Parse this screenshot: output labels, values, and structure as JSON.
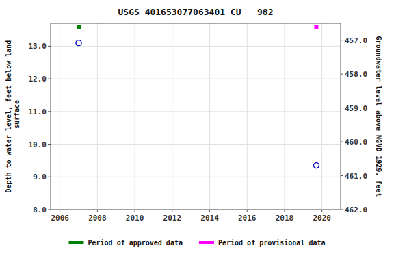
{
  "chart_data": {
    "type": "scatter",
    "title": "USGS 401653077063401 CU   982",
    "y_label": "Depth to water level, feet below land\n surface",
    "y2_label": "Groundwater level above NGVD 1929, feet",
    "x": [
      2007.0,
      2019.7
    ],
    "values": [
      13.1,
      9.35
    ],
    "color": "#0000cc",
    "marker": "open-circle",
    "series": [
      {
        "name": "Period of approved data",
        "color": "#008000",
        "marker": "square",
        "x": [
          2007.0
        ]
      },
      {
        "name": "Period of provisional data",
        "color": "#ff00ff",
        "marker": "square",
        "x": [
          2019.7
        ]
      }
    ],
    "xlim": [
      2005.5,
      2021.0
    ],
    "xticks": [
      2006,
      2008,
      2010,
      2012,
      2014,
      2016,
      2018,
      2020
    ],
    "ylim": [
      8.0,
      13.7
    ],
    "yticks": [
      {
        "value": 8,
        "label": "8.0"
      },
      {
        "value": 9,
        "label": "9.0"
      },
      {
        "value": 10,
        "label": "10.0"
      },
      {
        "value": 11,
        "label": "11.0"
      },
      {
        "value": 12,
        "label": "12.0"
      },
      {
        "value": 13,
        "label": "13.0"
      }
    ],
    "y2lim": [
      462.0,
      456.5
    ],
    "y2ticks": [
      {
        "value": 462,
        "label": "462.0"
      },
      {
        "value": 461,
        "label": "461.0"
      },
      {
        "value": 460,
        "label": "460.0"
      },
      {
        "value": 459,
        "label": "459.0"
      },
      {
        "value": 458,
        "label": "458.0"
      },
      {
        "value": 457,
        "label": "457.0"
      }
    ],
    "grid": true,
    "legend": "bottom"
  }
}
